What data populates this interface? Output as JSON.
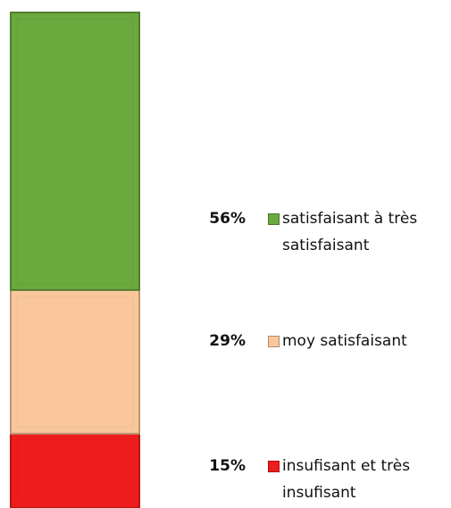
{
  "chart_data": {
    "type": "bar",
    "stacked": true,
    "categories": [
      null
    ],
    "ylim": [
      0,
      100
    ],
    "series": [
      {
        "name": "insufisant et très insufisant",
        "color": "#ee1c1c",
        "values": [
          15
        ],
        "value_labels": [
          "15%"
        ]
      },
      {
        "name": "moy satisfaisant",
        "color": "#fac79c",
        "values": [
          29
        ],
        "value_labels": [
          "29%"
        ]
      },
      {
        "name": "satisfaisant à très satisfaisant",
        "color": "#6ba83d",
        "values": [
          56
        ],
        "value_labels": [
          "56%"
        ]
      }
    ]
  }
}
